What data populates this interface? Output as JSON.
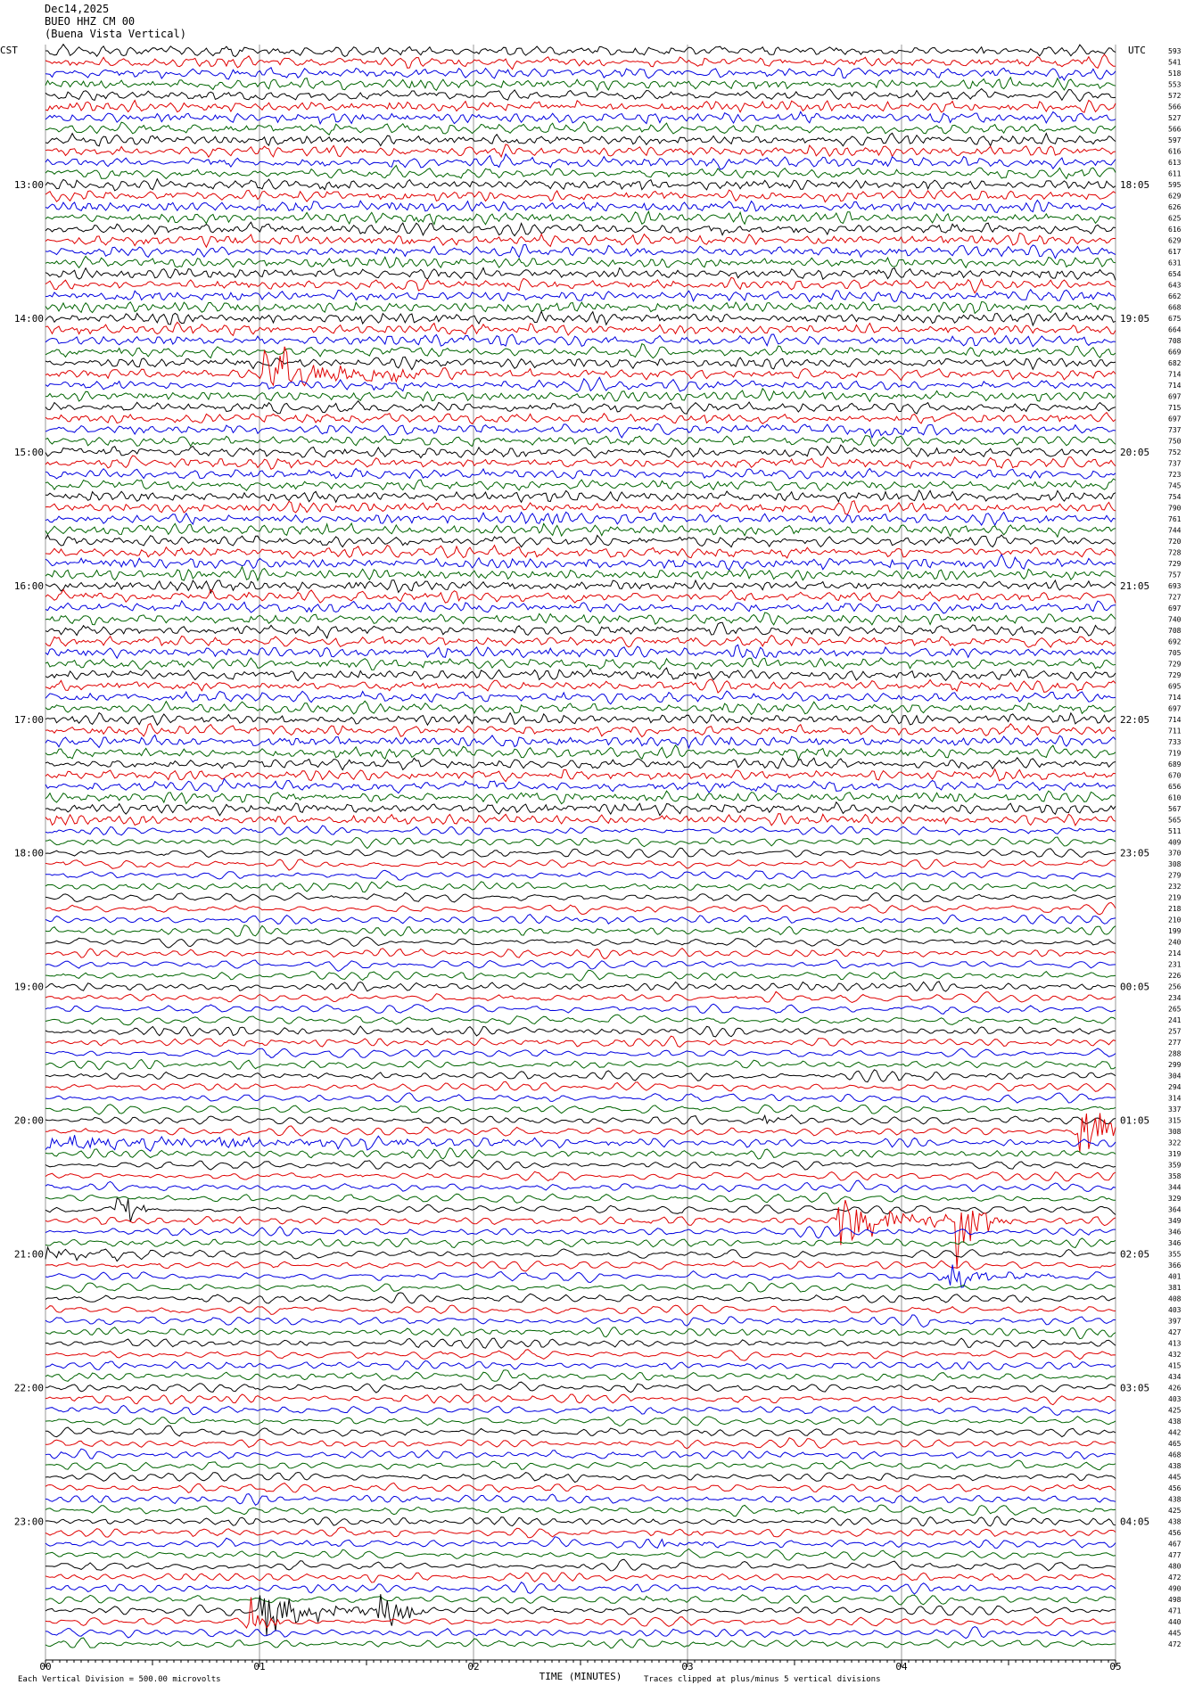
{
  "header": {
    "date": "Dec14,2025",
    "station": "BUEO HHZ CM 00",
    "site": "(Buena Vista Vertical)"
  },
  "left_axis": {
    "label": "CST",
    "hours": [
      "13:00",
      "14:00",
      "15:00",
      "16:00",
      "17:00",
      "18:00",
      "19:00",
      "20:00",
      "21:00",
      "22:00",
      "23:00"
    ]
  },
  "right_axis": {
    "label": "UTC",
    "hours": [
      "18:05",
      "19:05",
      "20:05",
      "21:05",
      "22:05",
      "23:05",
      "00:05",
      "01:05",
      "02:05",
      "03:05",
      "04:05"
    ]
  },
  "row_values": [
    593,
    541,
    518,
    553,
    572,
    566,
    527,
    566,
    597,
    616,
    613,
    611,
    595,
    629,
    626,
    625,
    616,
    629,
    617,
    631,
    654,
    643,
    662,
    668,
    675,
    664,
    708,
    669,
    682,
    714,
    714,
    697,
    715,
    697,
    737,
    750,
    752,
    737,
    723,
    745,
    754,
    790,
    761,
    744,
    720,
    728,
    729,
    757,
    693,
    727,
    697,
    740,
    708,
    692,
    705,
    729,
    729,
    695,
    714,
    697,
    714,
    711,
    733,
    719,
    689,
    670,
    656,
    610,
    567,
    565,
    511,
    409,
    370,
    308,
    279,
    232,
    219,
    218,
    210,
    199,
    240,
    214,
    231,
    226,
    256,
    234,
    265,
    241,
    257,
    277,
    288,
    299,
    304,
    294,
    314,
    337,
    315,
    308,
    322,
    319,
    359,
    358,
    344,
    329,
    364,
    349,
    346,
    346,
    355,
    366,
    401,
    381,
    408,
    403,
    397,
    427,
    413,
    432,
    415,
    434,
    426,
    403,
    425,
    438,
    442,
    465,
    468,
    438,
    445,
    456,
    438,
    425,
    438,
    456,
    467,
    477,
    480,
    472,
    490,
    498,
    471,
    440,
    445,
    472
  ],
  "time_axis": {
    "title": "TIME (MINUTES)",
    "ticks": [
      "00",
      "01",
      "02",
      "03",
      "04",
      "05"
    ]
  },
  "footer": {
    "scale": "Each Vertical Division =  500.00 microvolts",
    "clip": "Traces clipped at plus/minus 5 vertical divisions"
  }
}
